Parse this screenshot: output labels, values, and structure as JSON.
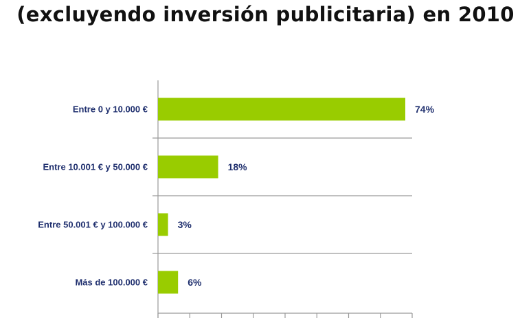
{
  "title": {
    "line1": "",
    "line2": "(excluyendo inversión publicitaria) en 2010"
  },
  "chart_data": {
    "type": "bar",
    "orientation": "horizontal",
    "categories": [
      "Entre 0 y 10.000 €",
      "Entre 10.001 € y 50.000 €",
      "Entre 50.001 € y 100.000 €",
      "Más de 100.000 €"
    ],
    "values": [
      74,
      18,
      3,
      6
    ],
    "value_labels": [
      "74%",
      "18%",
      "3%",
      "6%"
    ],
    "unit": "%",
    "xlim": [
      0,
      80
    ],
    "bar_color": "#99cc00",
    "label_color": "#1f2f6e",
    "grid": "horizontal separators between categories",
    "legend": "none"
  }
}
